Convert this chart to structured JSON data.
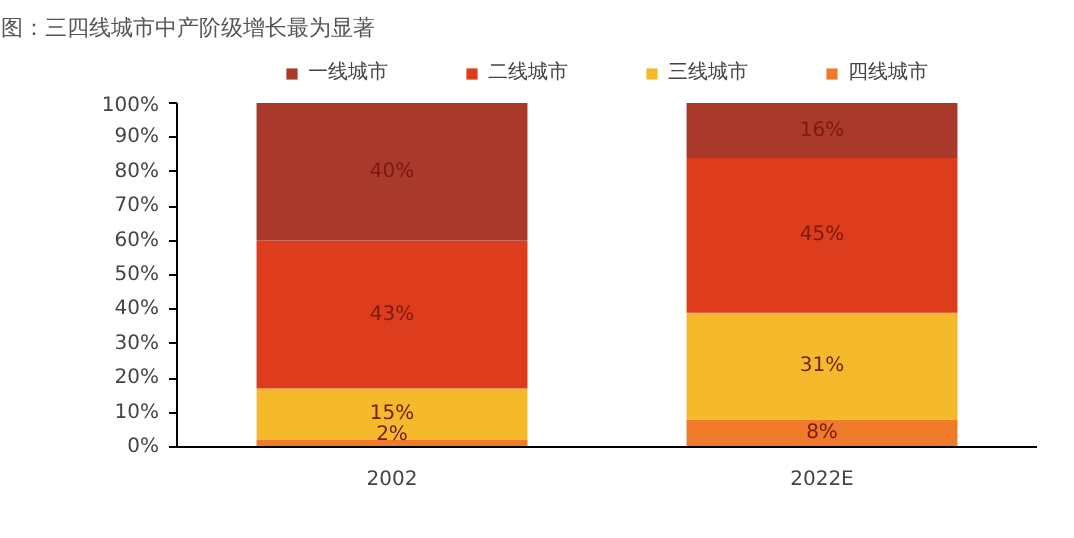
{
  "chart_data": {
    "type": "bar",
    "title": "图：三四线城市中产阶级增长最为显著",
    "categories": [
      "2002",
      "2022E"
    ],
    "stacked": true,
    "legend": "top",
    "grid": false,
    "ylim": [
      0,
      100
    ],
    "yticks": [
      {
        "value": 0,
        "label": "0%"
      },
      {
        "value": 10,
        "label": "10%"
      },
      {
        "value": 20,
        "label": "20%"
      },
      {
        "value": 30,
        "label": "30%"
      },
      {
        "value": 40,
        "label": "40%"
      },
      {
        "value": 50,
        "label": "50%"
      },
      {
        "value": 60,
        "label": "60%"
      },
      {
        "value": 70,
        "label": "70%"
      },
      {
        "value": 80,
        "label": "80%"
      },
      {
        "value": 90,
        "label": "90%"
      },
      {
        "value": 100,
        "label": "100%"
      }
    ],
    "series": [
      {
        "name": "四线城市",
        "color": "#ee7a2a",
        "values": [
          2,
          8
        ],
        "value_labels": [
          "2%",
          "8%"
        ]
      },
      {
        "name": "三线城市",
        "color": "#f5b92c",
        "values": [
          15,
          31
        ],
        "value_labels": [
          "15%",
          "31%"
        ]
      },
      {
        "name": "二线城市",
        "color": "#dd3d1c",
        "values": [
          43,
          45
        ],
        "value_labels": [
          "43%",
          "45%"
        ]
      },
      {
        "name": "一线城市",
        "color": "#a8392b",
        "values": [
          40,
          16
        ],
        "value_labels": [
          "40%",
          "16%"
        ]
      }
    ]
  }
}
